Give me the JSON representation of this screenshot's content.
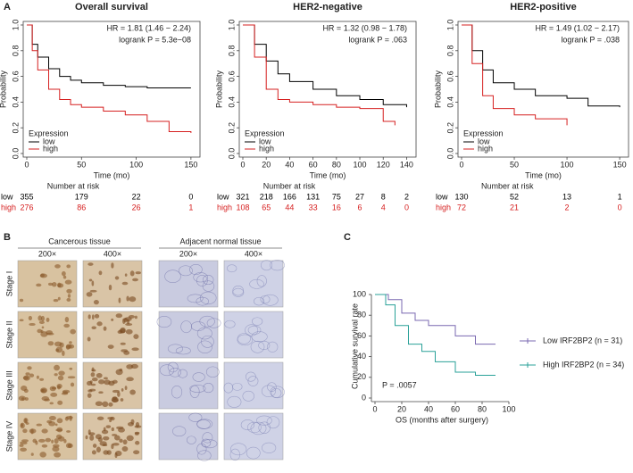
{
  "panel_labels": [
    "A",
    "B",
    "C"
  ],
  "chart_data": [
    {
      "type": "step",
      "title": "Overall survival",
      "annotations": [
        "HR = 1.81 (1.46 − 2.24)",
        "logrank P = 5.3e−08"
      ],
      "xlabel": "Time (mo)",
      "ylabel": "Probability",
      "legend_title": "Expression",
      "xlim": [
        0,
        155
      ],
      "xticks": [
        0,
        50,
        100,
        150
      ],
      "ylim": [
        0,
        1
      ],
      "yticks": [
        {
          "value": 0,
          "label": "0.0"
        },
        0.2,
        0.4,
        0.6,
        0.8,
        {
          "value": 1,
          "label": "1.0"
        }
      ],
      "risk_title": "Number at risk",
      "series": [
        {
          "name": "low",
          "color": "#000000",
          "x": [
            0,
            5,
            10,
            20,
            30,
            40,
            50,
            70,
            90,
            110,
            130,
            150
          ],
          "values": [
            1,
            0.85,
            0.75,
            0.66,
            0.6,
            0.57,
            0.55,
            0.53,
            0.52,
            0.51,
            0.51,
            0.51
          ],
          "at_risk": [
            355,
            179,
            22,
            0
          ]
        },
        {
          "name": "high",
          "color": "#d62020",
          "x": [
            0,
            5,
            10,
            20,
            30,
            40,
            50,
            70,
            90,
            110,
            130,
            150
          ],
          "values": [
            1,
            0.8,
            0.65,
            0.5,
            0.42,
            0.38,
            0.36,
            0.33,
            0.3,
            0.25,
            0.17,
            0.16
          ],
          "at_risk": [
            276,
            86,
            26,
            1
          ]
        }
      ]
    },
    {
      "type": "step",
      "title": "HER2-negative",
      "annotations": [
        "HR = 1.32 (0.98 − 1.78)",
        "logrank P = .063"
      ],
      "xlabel": "Time (mo)",
      "ylabel": "Probability",
      "legend_title": "Expression",
      "xlim": [
        0,
        145
      ],
      "xticks": [
        0,
        20,
        40,
        60,
        80,
        100,
        120,
        140
      ],
      "ylim": [
        0,
        1
      ],
      "yticks": [
        {
          "value": 0,
          "label": "0.0"
        },
        0.2,
        0.4,
        0.6,
        0.8,
        {
          "value": 1,
          "label": "1.0"
        }
      ],
      "risk_title": "Number at risk",
      "series": [
        {
          "name": "low",
          "color": "#000000",
          "x": [
            0,
            10,
            20,
            30,
            40,
            60,
            80,
            100,
            120,
            140
          ],
          "values": [
            1,
            0.85,
            0.72,
            0.62,
            0.56,
            0.5,
            0.45,
            0.42,
            0.38,
            0.36
          ],
          "at_risk": [
            321,
            218,
            166,
            131,
            75,
            27,
            8,
            2
          ]
        },
        {
          "name": "high",
          "color": "#d62020",
          "x": [
            0,
            10,
            20,
            30,
            40,
            60,
            80,
            100,
            120,
            130
          ],
          "values": [
            1,
            0.75,
            0.5,
            0.42,
            0.4,
            0.38,
            0.36,
            0.35,
            0.25,
            0.22
          ],
          "at_risk": [
            108,
            65,
            44,
            33,
            16,
            6,
            4,
            0
          ]
        }
      ]
    },
    {
      "type": "step",
      "title": "HER2-positive",
      "annotations": [
        "HR = 1.49 (1.02 − 2.17)",
        "logrank P = .038"
      ],
      "xlabel": "Time (mo)",
      "ylabel": "Probability",
      "legend_title": "Expression",
      "xlim": [
        0,
        155
      ],
      "xticks": [
        0,
        50,
        100,
        150
      ],
      "ylim": [
        0,
        1
      ],
      "yticks": [
        {
          "value": 0,
          "label": "0.0"
        },
        0.2,
        0.4,
        0.6,
        0.8,
        {
          "value": 1,
          "label": "1.0"
        }
      ],
      "risk_title": "Number at risk",
      "series": [
        {
          "name": "low",
          "color": "#000000",
          "x": [
            0,
            10,
            20,
            30,
            50,
            70,
            100,
            120,
            150
          ],
          "values": [
            1,
            0.8,
            0.65,
            0.55,
            0.5,
            0.45,
            0.43,
            0.37,
            0.36
          ],
          "at_risk": [
            130,
            52,
            13,
            1
          ]
        },
        {
          "name": "high",
          "color": "#d62020",
          "x": [
            0,
            10,
            20,
            30,
            50,
            70,
            100
          ],
          "values": [
            1,
            0.7,
            0.45,
            0.35,
            0.3,
            0.27,
            0.22
          ],
          "at_risk": [
            72,
            21,
            2,
            0
          ]
        }
      ]
    },
    {
      "type": "step",
      "annotations": [
        "P = .0057"
      ],
      "xlabel": "OS (months after surgery)",
      "ylabel": "Cumulative survival rate",
      "xlim": [
        0,
        100
      ],
      "xticks": [
        0,
        20,
        40,
        60,
        80,
        100
      ],
      "ylim": [
        0,
        100
      ],
      "yticks": [
        0,
        20,
        40,
        60,
        80,
        100
      ],
      "series": [
        {
          "name": "Low IRF2BP2 (n = 31)",
          "color": "#7a68b0",
          "x": [
            0,
            10,
            20,
            30,
            40,
            60,
            75,
            90
          ],
          "values": [
            100,
            95,
            82,
            75,
            70,
            60,
            52,
            52
          ]
        },
        {
          "name": "High IRF2BP2 (n = 34)",
          "color": "#2aa198",
          "x": [
            0,
            8,
            15,
            25,
            35,
            45,
            60,
            75,
            90
          ],
          "values": [
            100,
            90,
            70,
            52,
            45,
            35,
            25,
            22,
            22
          ]
        }
      ]
    }
  ],
  "panel_b": {
    "groups": [
      "Cancerous tissue",
      "Adjacent normal tissue"
    ],
    "magnifications": [
      "200×",
      "400×",
      "200×",
      "400×"
    ],
    "stages": [
      "Stage I",
      "Stage II",
      "Stage III",
      "Stage IV"
    ]
  }
}
